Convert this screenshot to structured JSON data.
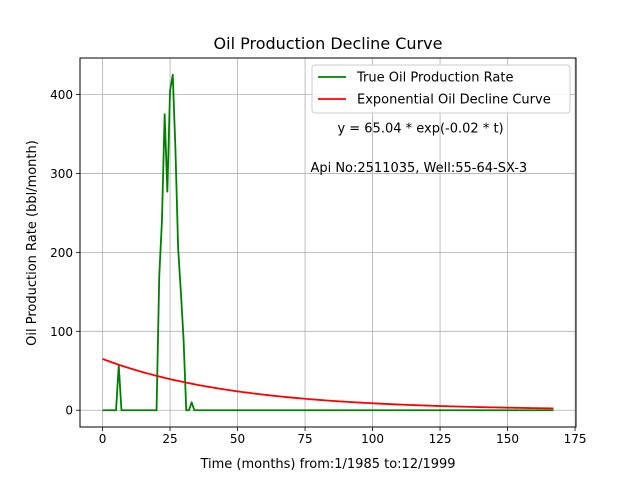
{
  "chart_data": {
    "type": "line",
    "title": "Oil Production Decline Curve",
    "xlabel": "Time (months) from:1/1985 to:12/1999",
    "ylabel": "Oil Production Rate (bbl/month)",
    "xlim": [
      -8.35,
      175.35
    ],
    "ylim": [
      -21.25,
      446.25
    ],
    "xticks": [
      0,
      25,
      50,
      75,
      100,
      125,
      150,
      175
    ],
    "yticks": [
      0,
      100,
      200,
      300,
      400
    ],
    "grid": true,
    "legend_position": "top-right",
    "series": [
      {
        "name": "True Oil Production Rate",
        "color": "#008000",
        "x": [
          0,
          1,
          2,
          3,
          4,
          5,
          6,
          7,
          8,
          9,
          10,
          11,
          12,
          13,
          14,
          15,
          16,
          17,
          18,
          19,
          20,
          21,
          22,
          23,
          24,
          25,
          26,
          27,
          28,
          29,
          30,
          31,
          32,
          33,
          34,
          35,
          36,
          40,
          50,
          60,
          70,
          80,
          90,
          100,
          110,
          120,
          130,
          140,
          150,
          160,
          167
        ],
        "y": [
          0,
          0,
          0,
          0,
          0,
          0,
          57,
          0,
          0,
          0,
          0,
          0,
          0,
          0,
          0,
          0,
          0,
          0,
          0,
          0,
          0,
          170,
          240,
          375,
          277,
          405,
          425,
          330,
          205,
          150,
          90,
          0,
          0,
          10,
          0,
          0,
          0,
          0,
          0,
          0,
          0,
          0,
          0,
          0,
          0,
          0,
          0,
          0,
          0,
          0,
          0
        ]
      },
      {
        "name": "Exponential Oil Decline Curve",
        "color": "#ff0000",
        "equation": {
          "a": 65.04,
          "b": 0.02
        },
        "x_range": [
          0,
          167
        ]
      }
    ],
    "annotations": [
      {
        "text": "y = 65.04 * exp(-0.02 * t)",
        "x": 87,
        "y": 352
      },
      {
        "text": "Api No:2511035, Well:55-64-SX-3",
        "x": 77,
        "y": 302
      }
    ]
  }
}
